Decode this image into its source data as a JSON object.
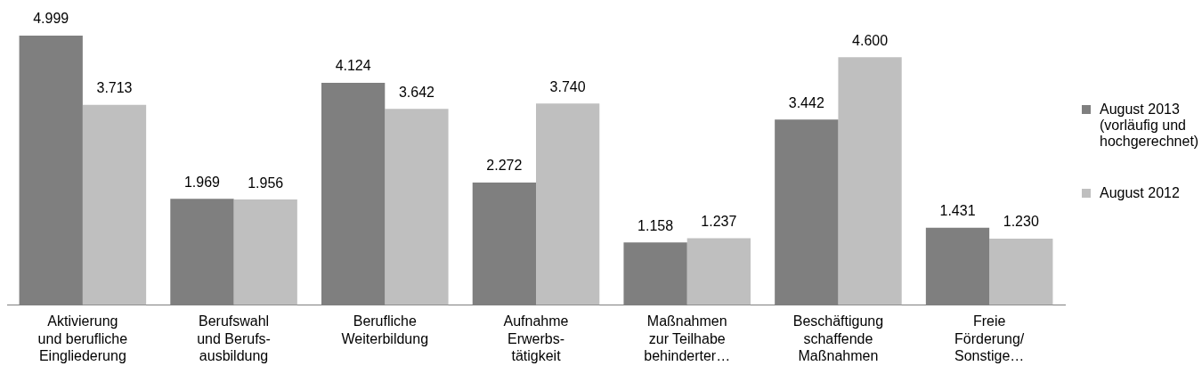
{
  "chart_data": {
    "type": "bar",
    "categories": [
      "Aktivierung\nund berufliche\nEingliederung",
      "Berufswahl\nund Berufs-\nausbildung",
      "Berufliche\nWeiterbildung",
      "Aufnahme\nErwerbs-\ntätigkeit",
      "Maßnahmen\nzur Teilhabe\nbehinderter…",
      "Beschäftigung\nschaffende\nMaßnahmen",
      "Freie\nFörderung/\nSonstige…"
    ],
    "series": [
      {
        "name": "August 2013 (vorläufig und hochgerechnet)",
        "color": "#7f7f7f",
        "values": [
          4999,
          1969,
          4124,
          2272,
          1158,
          3442,
          1431
        ],
        "value_labels": [
          "4.999",
          "1.969",
          "4.124",
          "2.272",
          "1.158",
          "3.442",
          "1.431"
        ]
      },
      {
        "name": "August 2012",
        "color": "#bfbfbf",
        "values": [
          3713,
          1956,
          3642,
          3740,
          1237,
          4600,
          1230
        ],
        "value_labels": [
          "3.713",
          "1.956",
          "3.642",
          "3.740",
          "1.237",
          "4.600",
          "1.230"
        ]
      }
    ],
    "legend": "right",
    "grid": false
  }
}
